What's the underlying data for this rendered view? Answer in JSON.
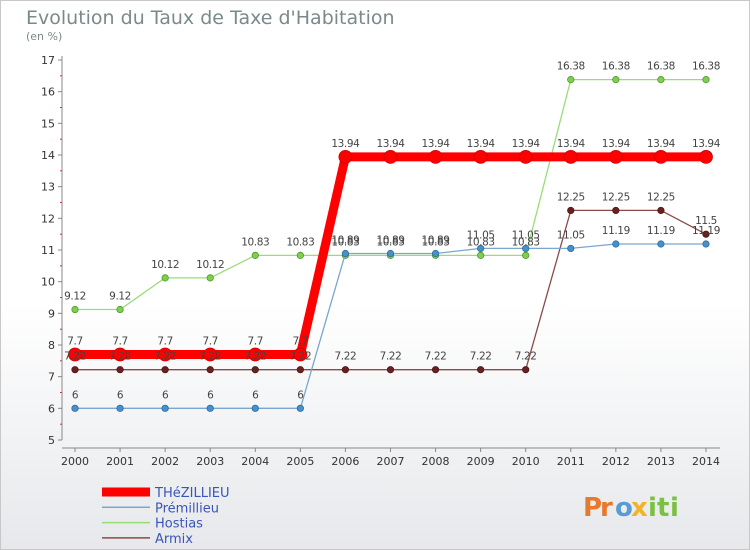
{
  "chart_data": {
    "type": "line",
    "title": "Evolution du Taux de Taxe d'Habitation",
    "subtitle": "(en %)",
    "xlabel": "",
    "ylabel": "",
    "ylim": [
      5,
      17
    ],
    "yticks": [
      "5",
      "6",
      "7",
      "8",
      "9",
      "10",
      "11",
      "12",
      "13",
      "14",
      "15",
      "16",
      "17"
    ],
    "grid": false,
    "legend_position": "bottom-left",
    "categories": [
      "2000",
      "2001",
      "2002",
      "2003",
      "2004",
      "2005",
      "2006",
      "2007",
      "2008",
      "2009",
      "2010",
      "2011",
      "2012",
      "2013",
      "2014"
    ],
    "series": [
      {
        "name": "THéZILLIEU",
        "color": "#ff0000",
        "values": [
          7.7,
          7.7,
          7.7,
          7.7,
          7.7,
          7.7,
          13.94,
          13.94,
          13.94,
          13.94,
          13.94,
          13.94,
          13.94,
          13.94,
          13.94
        ],
        "labels": [
          "7.7",
          "7.7",
          "7.7",
          "7.7",
          "7.7",
          "7.7",
          "13.94",
          "13.94",
          "13.94",
          "13.94",
          "13.94",
          "13.94",
          "13.94",
          "13.94",
          "13.94"
        ]
      },
      {
        "name": "Prémillieu",
        "color": "#7aa6cf",
        "values": [
          6,
          6,
          6,
          6,
          6,
          6,
          10.89,
          10.89,
          10.89,
          11.05,
          11.05,
          11.05,
          11.19,
          11.19,
          11.19
        ],
        "labels": [
          "6",
          "6",
          "6",
          "6",
          "6",
          "6",
          "10.89",
          "10.89",
          "10.89",
          "11.05",
          "11.05",
          "11.05",
          "11.19",
          "11.19",
          "11.19"
        ]
      },
      {
        "name": "Hostias",
        "color": "#99dd77",
        "values": [
          9.12,
          9.12,
          10.12,
          10.12,
          10.83,
          10.83,
          10.83,
          10.83,
          10.83,
          10.83,
          10.83,
          16.38,
          16.38,
          16.38,
          16.38
        ],
        "labels": [
          "9.12",
          "9.12",
          "10.12",
          "10.12",
          "10.83",
          "10.83",
          "10.83",
          "10.83",
          "10.83",
          "10.83",
          "10.83",
          "16.38",
          "16.38",
          "16.38",
          "16.38"
        ]
      },
      {
        "name": "Armix",
        "color": "#8b4a4a",
        "values": [
          7.22,
          7.22,
          7.22,
          7.22,
          7.22,
          7.22,
          7.22,
          7.22,
          7.22,
          7.22,
          7.22,
          12.25,
          12.25,
          12.25,
          11.5
        ],
        "labels": [
          "7.22",
          "7.22",
          "7.22",
          "7.22",
          "7.22",
          "7.22",
          "7.22",
          "7.22",
          "7.22",
          "7.22",
          "7.22",
          "12.25",
          "12.25",
          "12.25",
          "11.5"
        ]
      }
    ]
  },
  "logo": {
    "letters": [
      "P",
      "r",
      "o",
      "x",
      "i",
      "t",
      "i"
    ],
    "colors": [
      "#e8792b",
      "#e8792b",
      "#5a9bd6",
      "#f0b429",
      "#7ac143",
      "#7ac143",
      "#7ac143"
    ]
  }
}
